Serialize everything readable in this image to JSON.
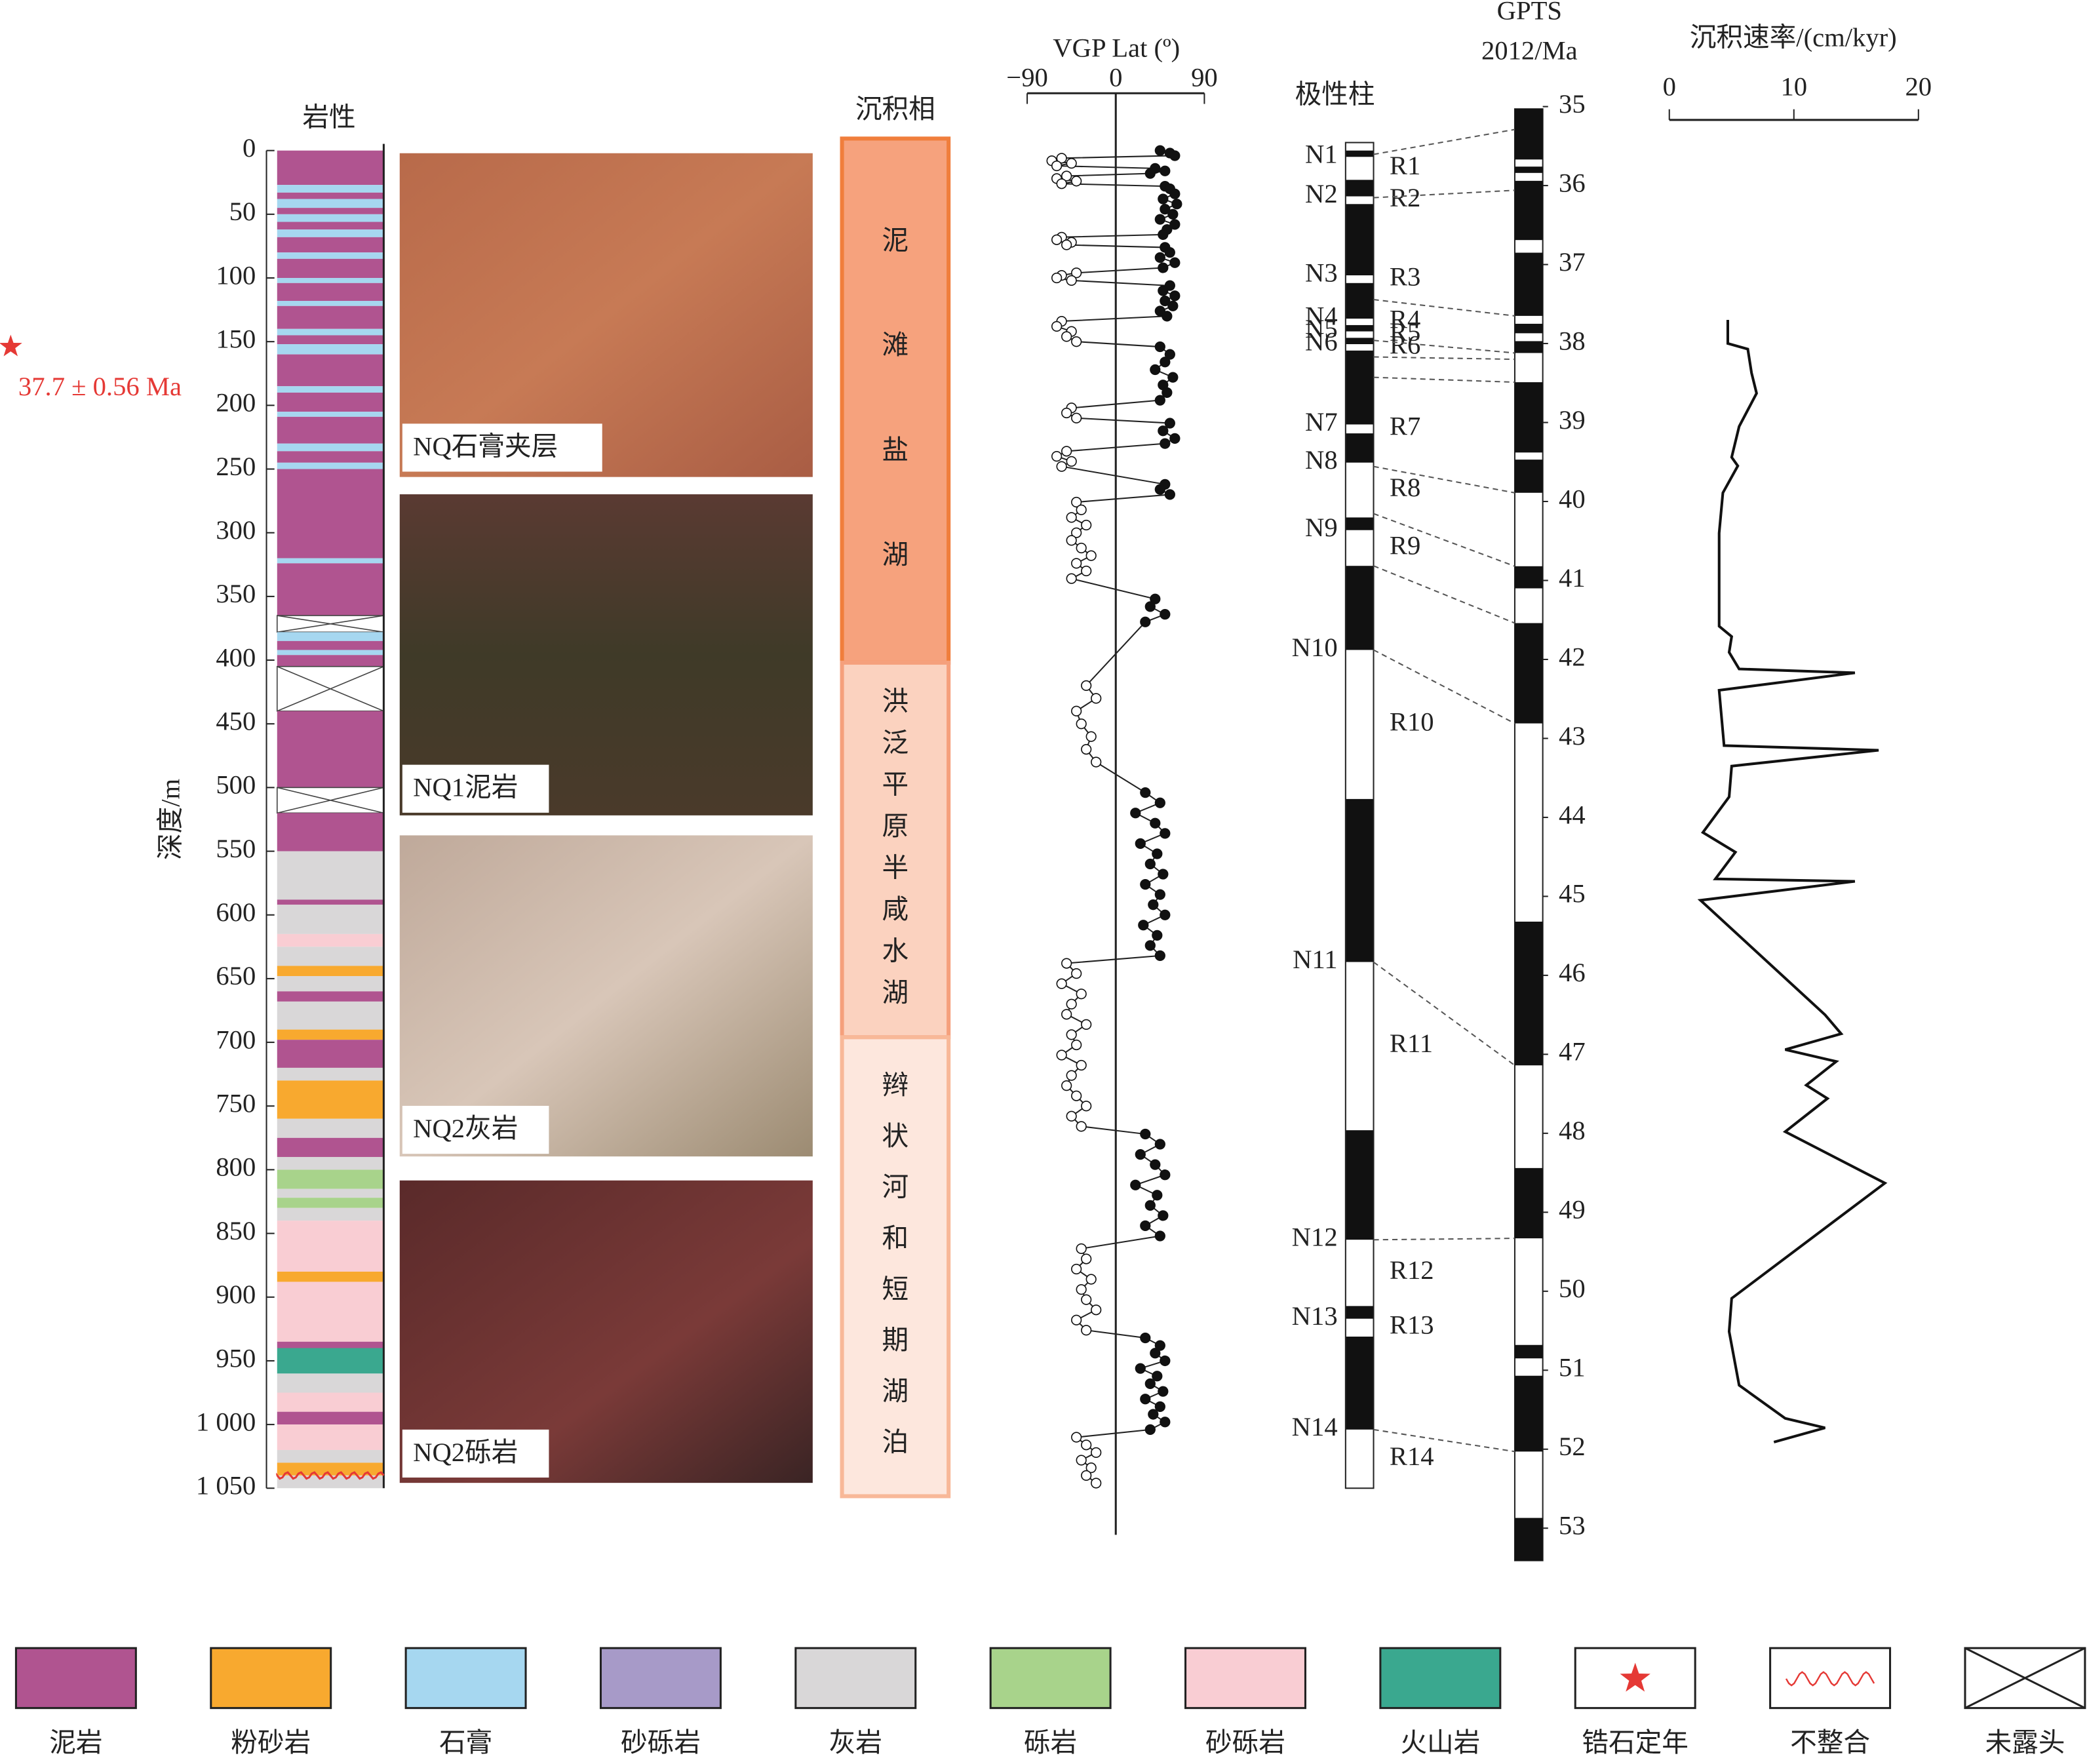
{
  "lithology": {
    "title": "岩性",
    "layers": [
      [
        0,
        27,
        0
      ],
      [
        27,
        33,
        2
      ],
      [
        33,
        38,
        0
      ],
      [
        38,
        45,
        2
      ],
      [
        45,
        50,
        0
      ],
      [
        50,
        56,
        2
      ],
      [
        56,
        62,
        0
      ],
      [
        62,
        68,
        2
      ],
      [
        68,
        80,
        0
      ],
      [
        80,
        85,
        2
      ],
      [
        85,
        100,
        0
      ],
      [
        100,
        104,
        2
      ],
      [
        104,
        118,
        0
      ],
      [
        118,
        122,
        2
      ],
      [
        122,
        140,
        0
      ],
      [
        140,
        145,
        2
      ],
      [
        145,
        152,
        0
      ],
      [
        152,
        160,
        2
      ],
      [
        160,
        185,
        0
      ],
      [
        185,
        190,
        2
      ],
      [
        190,
        205,
        0
      ],
      [
        205,
        209,
        2
      ],
      [
        209,
        230,
        0
      ],
      [
        230,
        236,
        2
      ],
      [
        236,
        245,
        0
      ],
      [
        245,
        250,
        2
      ],
      [
        250,
        320,
        0
      ],
      [
        320,
        324,
        2
      ],
      [
        324,
        365,
        0
      ],
      [
        365,
        378,
        10
      ],
      [
        378,
        385,
        2
      ],
      [
        385,
        392,
        0
      ],
      [
        392,
        396,
        2
      ],
      [
        396,
        405,
        0
      ],
      [
        405,
        440,
        10
      ],
      [
        440,
        500,
        0
      ],
      [
        500,
        520,
        10
      ],
      [
        520,
        550,
        0
      ],
      [
        550,
        588,
        4
      ],
      [
        588,
        592,
        0
      ],
      [
        592,
        615,
        4
      ],
      [
        615,
        625,
        6
      ],
      [
        625,
        640,
        4
      ],
      [
        640,
        648,
        1
      ],
      [
        648,
        660,
        4
      ],
      [
        660,
        668,
        0
      ],
      [
        668,
        690,
        4
      ],
      [
        690,
        698,
        1
      ],
      [
        698,
        720,
        0
      ],
      [
        720,
        730,
        4
      ],
      [
        730,
        760,
        1
      ],
      [
        760,
        775,
        4
      ],
      [
        775,
        790,
        0
      ],
      [
        790,
        800,
        4
      ],
      [
        800,
        815,
        5
      ],
      [
        815,
        822,
        4
      ],
      [
        822,
        830,
        5
      ],
      [
        830,
        840,
        4
      ],
      [
        840,
        880,
        6
      ],
      [
        880,
        888,
        1
      ],
      [
        888,
        935,
        6
      ],
      [
        935,
        940,
        0
      ],
      [
        940,
        960,
        7
      ],
      [
        960,
        975,
        4
      ],
      [
        975,
        990,
        6
      ],
      [
        990,
        1000,
        0
      ],
      [
        1000,
        1020,
        6
      ],
      [
        1020,
        1030,
        4
      ],
      [
        1030,
        1040,
        1
      ],
      [
        1040,
        1050,
        4
      ]
    ]
  },
  "depth_axis": {
    "label": "深度/m",
    "ylim": [
      0,
      1050
    ],
    "yticks": [
      0,
      50,
      100,
      150,
      200,
      250,
      300,
      350,
      400,
      450,
      500,
      550,
      600,
      650,
      700,
      750,
      800,
      850,
      900,
      950,
      {
        "value": 1000,
        "label": "1 000"
      },
      {
        "value": 1050,
        "label": "1 050"
      }
    ]
  },
  "zircon": {
    "depth": 156,
    "label": "37.7 ± 0.56 Ma",
    "color": "#e53935"
  },
  "unconformities": [
    1040
  ],
  "photos": [
    {
      "label": "NQ石膏夹层"
    },
    {
      "label": "NQ1泥岩"
    },
    {
      "label": "NQ2灰岩"
    },
    {
      "label": "NQ2砾岩"
    }
  ],
  "facies": {
    "title": "沉积相",
    "units": [
      {
        "text": "泥滩盐湖",
        "top": 0,
        "bottom": 402,
        "fill": "#f6a27d",
        "stroke": "#f07e3c"
      },
      {
        "text": "洪泛平原半咸水湖",
        "top": 402,
        "bottom": 696,
        "fill": "#fbd2bf",
        "stroke": "#f5a07c"
      },
      {
        "text": "辫状河和短期湖泊",
        "top": 696,
        "bottom": 1050,
        "fill": "#fde7dd",
        "stroke": "#f8b898"
      }
    ]
  },
  "vgp": {
    "title": "VGP Lat (º)",
    "xlim": [
      -90,
      90
    ],
    "xticks": [
      {
        "value": -90,
        "label": "−90"
      },
      0,
      90
    ],
    "depth": [
      0,
      2,
      4,
      6,
      8,
      10,
      12,
      14,
      16,
      18,
      20,
      22,
      24,
      26,
      28,
      30,
      34,
      38,
      42,
      46,
      50,
      54,
      58,
      62,
      66,
      68,
      70,
      72,
      74,
      76,
      80,
      84,
      88,
      92,
      96,
      98,
      100,
      102,
      106,
      110,
      114,
      118,
      122,
      126,
      130,
      134,
      138,
      142,
      146,
      150,
      154,
      160,
      166,
      172,
      178,
      184,
      190,
      196,
      202,
      206,
      210,
      214,
      220,
      226,
      230,
      236,
      240,
      244,
      248,
      262,
      266,
      270,
      276,
      282,
      288,
      294,
      300,
      306,
      312,
      318,
      324,
      330,
      336,
      352,
      358,
      364,
      370,
      420,
      430,
      440,
      450,
      460,
      470,
      480,
      504,
      512,
      520,
      528,
      536,
      544,
      552,
      560,
      568,
      576,
      584,
      592,
      600,
      608,
      616,
      624,
      632,
      638,
      646,
      654,
      662,
      670,
      678,
      686,
      694,
      702,
      710,
      718,
      726,
      734,
      742,
      750,
      758,
      766,
      772,
      780,
      788,
      796,
      804,
      812,
      820,
      828,
      836,
      844,
      852,
      862,
      870,
      878,
      886,
      894,
      902,
      910,
      918,
      926,
      932,
      938,
      944,
      950,
      956,
      962,
      968,
      974,
      980,
      986,
      992,
      998,
      1004,
      1010,
      1016,
      1022,
      1028,
      1034,
      1040,
      1046
    ],
    "lat": [
      45,
      55,
      60,
      -55,
      -65,
      -45,
      -60,
      40,
      50,
      35,
      -50,
      -60,
      -40,
      -55,
      50,
      55,
      60,
      48,
      62,
      50,
      58,
      45,
      60,
      52,
      48,
      -55,
      -60,
      -45,
      -50,
      50,
      55,
      45,
      60,
      48,
      -40,
      -55,
      -60,
      -45,
      55,
      48,
      60,
      50,
      58,
      45,
      52,
      -55,
      -60,
      -45,
      -50,
      -40,
      45,
      55,
      50,
      40,
      58,
      48,
      52,
      45,
      -45,
      -50,
      -40,
      55,
      48,
      60,
      50,
      -50,
      -60,
      -45,
      -55,
      50,
      45,
      55,
      -40,
      -35,
      -45,
      -30,
      -40,
      -45,
      -35,
      -25,
      -40,
      -30,
      -45,
      40,
      35,
      50,
      30,
      -30,
      -20,
      -40,
      -35,
      -25,
      -30,
      -20,
      30,
      45,
      20,
      40,
      50,
      25,
      42,
      35,
      48,
      30,
      45,
      38,
      50,
      28,
      42,
      35,
      45,
      -50,
      -40,
      -55,
      -35,
      -45,
      -50,
      -30,
      -45,
      -40,
      -55,
      -35,
      -45,
      -50,
      -40,
      -30,
      -45,
      -35,
      30,
      45,
      25,
      40,
      50,
      20,
      42,
      35,
      48,
      30,
      45,
      -35,
      -30,
      -40,
      -25,
      -35,
      -30,
      -20,
      -40,
      -30,
      30,
      45,
      40,
      50,
      25,
      42,
      35,
      48,
      30,
      45,
      38,
      50,
      35,
      -40,
      -30,
      -20,
      -35,
      -25,
      -30,
      -20
    ]
  },
  "polarity": {
    "title": "极性柱",
    "zones": [
      {
        "name": "N1",
        "top": 0,
        "bottom": 5,
        "normal": true
      },
      {
        "name": "R1",
        "top": 5,
        "bottom": 23,
        "normal": false
      },
      {
        "name": "N2",
        "top": 23,
        "bottom": 36,
        "normal": true
      },
      {
        "name": "R2",
        "top": 36,
        "bottom": 42,
        "normal": false
      },
      {
        "name": "N3",
        "top": 42,
        "bottom": 98,
        "normal": true
      },
      {
        "name": "R3",
        "top": 98,
        "bottom": 104,
        "normal": false
      },
      {
        "name": "N4",
        "top": 104,
        "bottom": 132,
        "normal": true
      },
      {
        "name": "R4",
        "top": 132,
        "bottom": 137,
        "normal": false
      },
      {
        "name": "N5",
        "top": 137,
        "bottom": 142,
        "normal": true
      },
      {
        "name": "R5",
        "top": 142,
        "bottom": 147,
        "normal": false
      },
      {
        "name": "N6",
        "top": 147,
        "bottom": 152,
        "normal": true
      },
      {
        "name": "R6",
        "top": 152,
        "bottom": 157,
        "normal": false
      },
      {
        "name": "N7",
        "top": 157,
        "bottom": 215,
        "normal": true
      },
      {
        "name": "R7",
        "top": 215,
        "bottom": 222,
        "normal": false
      },
      {
        "name": "N8",
        "top": 222,
        "bottom": 245,
        "normal": true
      },
      {
        "name": "R8",
        "top": 245,
        "bottom": 288,
        "normal": false
      },
      {
        "name": "N9",
        "top": 288,
        "bottom": 298,
        "normal": true
      },
      {
        "name": "R9",
        "top": 298,
        "bottom": 326,
        "normal": false
      },
      {
        "name": "N10",
        "top": 326,
        "bottom": 392,
        "normal": true
      },
      {
        "name": "R10",
        "top": 392,
        "bottom": 509,
        "normal": false
      },
      {
        "name": "N11",
        "top": 509,
        "bottom": 637,
        "normal": true
      },
      {
        "name": "R11",
        "top": 637,
        "bottom": 769,
        "normal": false
      },
      {
        "name": "N12",
        "top": 769,
        "bottom": 855,
        "normal": true
      },
      {
        "name": "R12",
        "top": 855,
        "bottom": 907,
        "normal": false
      },
      {
        "name": "N13",
        "top": 907,
        "bottom": 917,
        "normal": true
      },
      {
        "name": "R13",
        "top": 917,
        "bottom": 931,
        "normal": false
      },
      {
        "name": "N14",
        "top": 931,
        "bottom": 1004,
        "normal": true
      },
      {
        "name": "R14",
        "top": 1004,
        "bottom": 1050,
        "normal": false
      }
    ]
  },
  "gpts": {
    "title": [
      "GPTS",
      "2012/Ma"
    ],
    "ylim": [
      35,
      53
    ],
    "yticks": [
      35,
      36,
      37,
      38,
      39,
      40,
      41,
      42,
      43,
      44,
      45,
      46,
      47,
      48,
      49,
      50,
      51,
      52,
      53
    ],
    "extent": [
      35.03,
      53.41
    ],
    "normal": [
      [
        35.03,
        35.67
      ],
      [
        35.76,
        35.84
      ],
      [
        35.94,
        36.69
      ],
      [
        36.85,
        37.65
      ],
      [
        37.75,
        37.87
      ],
      [
        37.97,
        38.12
      ],
      [
        38.49,
        39.38
      ],
      [
        39.47,
        39.89
      ],
      [
        40.82,
        41.1
      ],
      [
        41.54,
        42.81
      ],
      [
        45.32,
        47.14
      ],
      [
        48.44,
        49.33
      ],
      [
        50.68,
        50.85
      ],
      [
        51.07,
        52.03
      ],
      [
        52.87,
        53.41
      ]
    ]
  },
  "ties": [
    {
      "depth": 3,
      "age": 35.29
    },
    {
      "depth": 37,
      "age": 36.06
    },
    {
      "depth": 117,
      "age": 37.65
    },
    {
      "depth": 149,
      "age": 38.12
    },
    {
      "depth": 162,
      "age": 38.2
    },
    {
      "depth": 178,
      "age": 38.49
    },
    {
      "depth": 248,
      "age": 39.89
    },
    {
      "depth": 285,
      "age": 40.82
    },
    {
      "depth": 326,
      "age": 41.54
    },
    {
      "depth": 392,
      "age": 42.81
    },
    {
      "depth": 637,
      "age": 47.14
    },
    {
      "depth": 855,
      "age": 49.33
    },
    {
      "depth": 1004,
      "age": 52.03
    }
  ],
  "rate": {
    "title": "沉积速率/(cm/kyr)",
    "xlim": [
      0,
      20
    ],
    "xticks": [
      0,
      10,
      20
    ],
    "rate": [
      4.7,
      4.7,
      6.3,
      6.6,
      7.0,
      5.6,
      5.0,
      5.5,
      4.3,
      4.0,
      4.0,
      5.0,
      4.8,
      5.6,
      14.9,
      4.0,
      4.4,
      16.8,
      5.0,
      4.8,
      2.7,
      5.3,
      3.7,
      14.9,
      2.5,
      12.5,
      13.8,
      9.3,
      13.4,
      11.0,
      12.7,
      9.3,
      17.3,
      5.0,
      4.8,
      5.6,
      9.3,
      12.5,
      8.4
    ],
    "age": [
      37.7,
      38.0,
      38.07,
      38.37,
      38.63,
      39.05,
      39.44,
      39.55,
      39.89,
      40.4,
      41.58,
      41.71,
      41.91,
      42.12,
      42.17,
      42.39,
      43.09,
      43.15,
      43.35,
      43.74,
      44.19,
      44.44,
      44.78,
      44.81,
      45.05,
      46.5,
      46.74,
      46.94,
      47.09,
      47.39,
      47.56,
      47.98,
      48.63,
      50.09,
      50.51,
      51.19,
      51.61,
      51.73,
      51.91
    ]
  },
  "legend": [
    {
      "name": "泥岩",
      "color": "#b05490"
    },
    {
      "name": "粉砂岩",
      "color": "#f8a92f"
    },
    {
      "name": "石膏",
      "color": "#a6d7f0"
    },
    {
      "name": "砂砾岩",
      "color": "#a79ac8"
    },
    {
      "name": "灰岩",
      "color": "#d9d7d8"
    },
    {
      "name": "砾岩",
      "color": "#a8d38b"
    },
    {
      "name": "砂砾岩",
      "color": "#f9cdd3"
    },
    {
      "name": "火山岩",
      "color": "#3aa88f"
    },
    {
      "name": "锆石定年",
      "symbol": "star"
    },
    {
      "name": "不整合",
      "symbol": "wave"
    },
    {
      "name": "未露头",
      "symbol": "cross"
    }
  ]
}
